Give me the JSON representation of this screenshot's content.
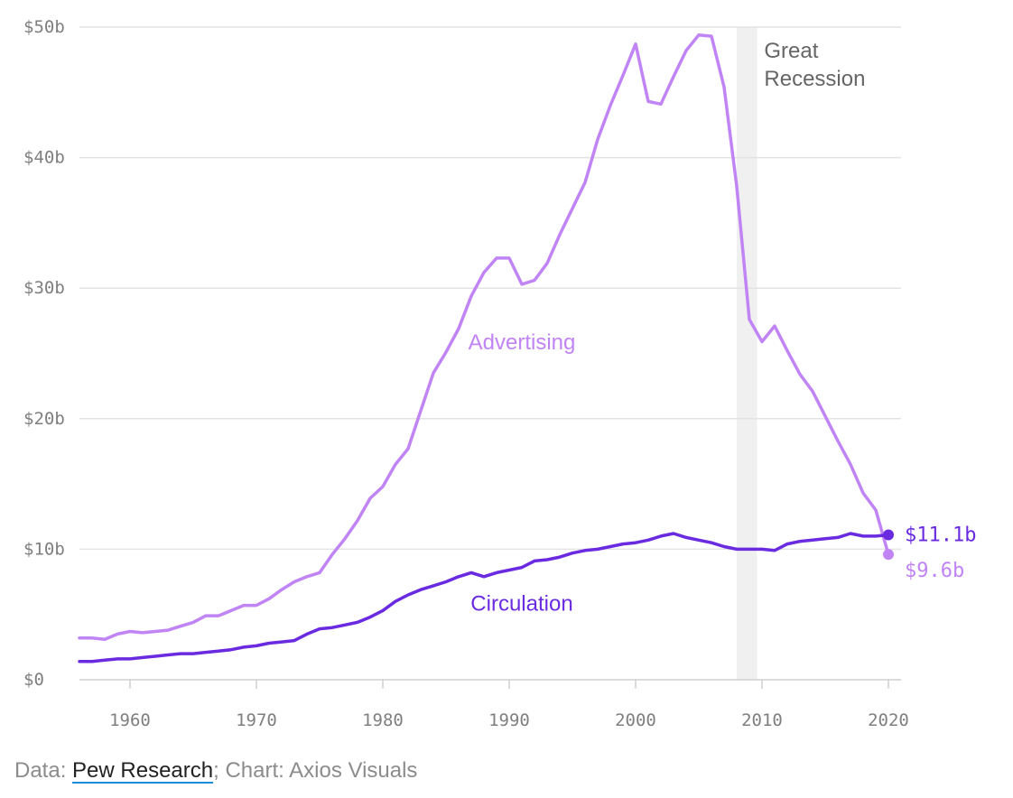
{
  "chart_data": {
    "type": "line",
    "title": "",
    "xlabel": "",
    "ylabel": "",
    "xlim": [
      1956,
      2021
    ],
    "ylim": [
      0,
      50
    ],
    "y_ticks": [
      {
        "value": 0,
        "label": "$0"
      },
      {
        "value": 10,
        "label": "$10b"
      },
      {
        "value": 20,
        "label": "$20b"
      },
      {
        "value": 30,
        "label": "$30b"
      },
      {
        "value": 40,
        "label": "$40b"
      },
      {
        "value": 50,
        "label": "$50b"
      }
    ],
    "x_ticks": [
      {
        "value": 1960,
        "label": "1960"
      },
      {
        "value": 1970,
        "label": "1970"
      },
      {
        "value": 1980,
        "label": "1980"
      },
      {
        "value": 1990,
        "label": "1990"
      },
      {
        "value": 2000,
        "label": "2000"
      },
      {
        "value": 2010,
        "label": "2010"
      },
      {
        "value": 2020,
        "label": "2020"
      }
    ],
    "grid": true,
    "x": [
      1956,
      1957,
      1958,
      1959,
      1960,
      1961,
      1962,
      1963,
      1964,
      1965,
      1966,
      1967,
      1968,
      1969,
      1970,
      1971,
      1972,
      1973,
      1974,
      1975,
      1976,
      1977,
      1978,
      1979,
      1980,
      1981,
      1982,
      1983,
      1984,
      1985,
      1986,
      1987,
      1988,
      1989,
      1990,
      1991,
      1992,
      1993,
      1994,
      1995,
      1996,
      1997,
      1998,
      1999,
      2000,
      2001,
      2002,
      2003,
      2004,
      2005,
      2006,
      2007,
      2008,
      2009,
      2010,
      2011,
      2012,
      2013,
      2014,
      2015,
      2016,
      2017,
      2018,
      2019,
      2020
    ],
    "series": [
      {
        "name": "Advertising",
        "color": "#c084f5",
        "values": [
          3.2,
          3.2,
          3.1,
          3.5,
          3.7,
          3.6,
          3.7,
          3.8,
          4.1,
          4.4,
          4.9,
          4.9,
          5.3,
          5.7,
          5.7,
          6.2,
          6.9,
          7.5,
          7.9,
          8.2,
          9.6,
          10.8,
          12.2,
          13.9,
          14.8,
          16.5,
          17.7,
          20.6,
          23.5,
          25.1,
          26.9,
          29.4,
          31.2,
          32.3,
          32.3,
          30.3,
          30.6,
          31.9,
          34.1,
          36.1,
          38.1,
          41.4,
          44.0,
          46.3,
          48.7,
          44.3,
          44.1,
          46.2,
          48.2,
          49.4,
          49.3,
          45.4,
          37.8,
          27.6,
          25.9,
          27.1,
          25.2,
          23.4,
          22.1,
          20.2,
          18.3,
          16.5,
          14.3,
          13.0,
          9.6
        ]
      },
      {
        "name": "Circulation",
        "color": "#6a2be0",
        "values": [
          1.4,
          1.4,
          1.5,
          1.6,
          1.6,
          1.7,
          1.8,
          1.9,
          2.0,
          2.0,
          2.1,
          2.2,
          2.3,
          2.5,
          2.6,
          2.8,
          2.9,
          3.0,
          3.5,
          3.9,
          4.0,
          4.2,
          4.4,
          4.8,
          5.3,
          6.0,
          6.5,
          6.9,
          7.2,
          7.5,
          7.9,
          8.2,
          7.9,
          8.2,
          8.4,
          8.6,
          9.1,
          9.2,
          9.4,
          9.7,
          9.9,
          10.0,
          10.2,
          10.4,
          10.5,
          10.7,
          11.0,
          11.2,
          10.9,
          10.7,
          10.5,
          10.2,
          10.0,
          10.0,
          10.0,
          9.9,
          10.4,
          10.6,
          10.7,
          10.8,
          10.9,
          11.2,
          11.0,
          11.0,
          11.1
        ]
      }
    ],
    "series_labels": [
      {
        "text": "Advertising",
        "x": 1991,
        "y": 25.3
      },
      {
        "text": "Circulation",
        "x": 1991,
        "y": 5.3
      }
    ],
    "end_labels": [
      {
        "text": "$11.1b",
        "series": "Circulation",
        "color": "#6a2be0"
      },
      {
        "text": "$9.6b",
        "series": "Advertising",
        "color": "#c084f5"
      }
    ],
    "annotation": {
      "lines": [
        "Great",
        "Recession"
      ],
      "shade_start": 2008,
      "shade_end": 2009.6
    }
  },
  "source": {
    "prefix": "Data: ",
    "link": "Pew Research",
    "suffix": "; Chart: Axios Visuals"
  }
}
